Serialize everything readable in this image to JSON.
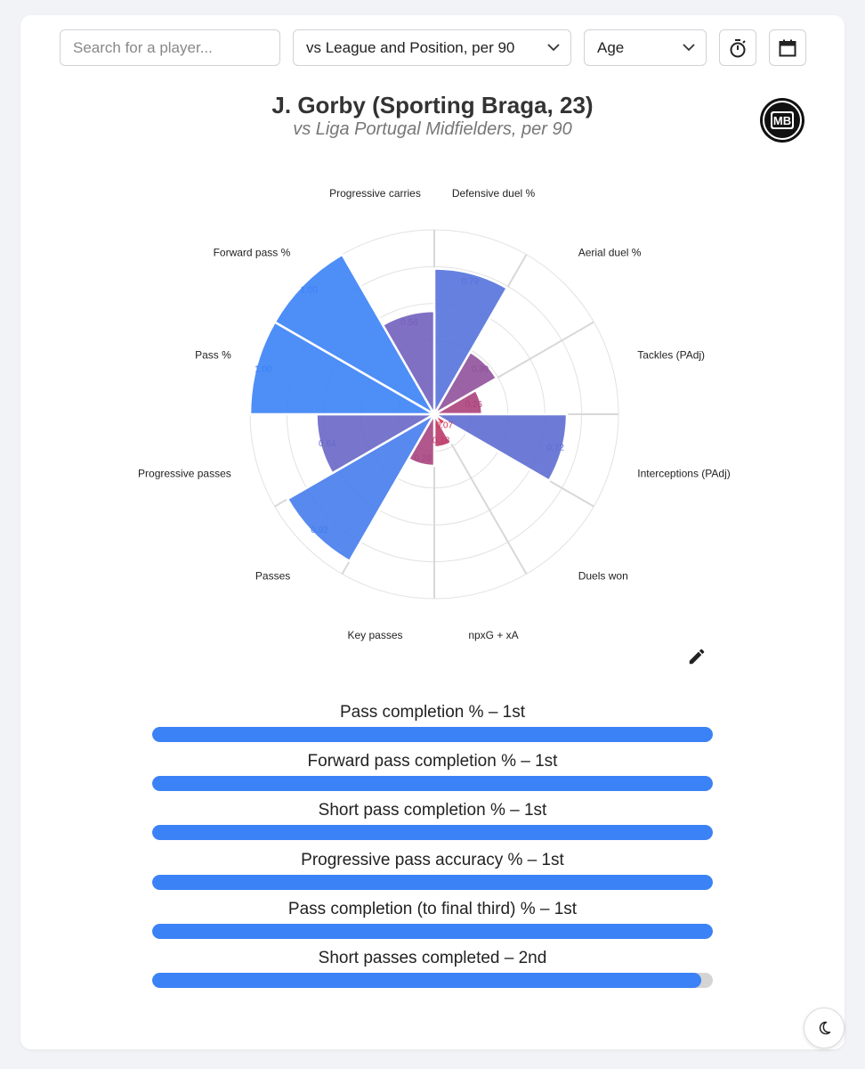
{
  "controls": {
    "search_placeholder": "Search for a player...",
    "comparison_select": "vs League and Position, per 90",
    "age_select": "Age",
    "timer_icon": "stopwatch-icon",
    "calendar_icon": "calendar-icon",
    "dropdown_icon": "chevron-down-icon"
  },
  "header": {
    "title": "J. Gorby (Sporting Braga, 23)",
    "subtitle": "vs Liga Portugal Midfielders, per 90",
    "logo_text": "MB"
  },
  "chart_data": {
    "type": "polar-bar",
    "rlim": [
      0,
      1
    ],
    "grid": true,
    "categories": [
      "Defensive duel %",
      "Aerial duel %",
      "Tackles (PAdj)",
      "Interceptions (PAdj)",
      "Duels won",
      "npxG + xA",
      "Key passes",
      "Passes",
      "Progressive passes",
      "Pass %",
      "Forward pass %",
      "Progressive carries"
    ],
    "values": [
      0.79,
      0.39,
      0.26,
      0.72,
      0.07,
      0.18,
      0.28,
      0.92,
      0.64,
      1.0,
      1.0,
      0.56
    ],
    "value_labels": [
      "0.79",
      "0.39",
      "0.26",
      "0.72",
      "0.07",
      "0.18",
      "0.28",
      "0.92",
      "0.64",
      "1.00",
      "1.00",
      "0.56"
    ],
    "colors": {
      "low": "#e0273f",
      "mid": "#7a5db5",
      "high": "#3b82f6"
    }
  },
  "toolbar": {
    "edit_icon": "pencil-icon"
  },
  "percentile_bars": [
    {
      "label": "Pass completion % – 1st",
      "percentile": 1.0
    },
    {
      "label": "Forward pass completion % – 1st",
      "percentile": 1.0
    },
    {
      "label": "Short pass completion % – 1st",
      "percentile": 1.0
    },
    {
      "label": "Progressive pass accuracy % – 1st",
      "percentile": 1.0
    },
    {
      "label": "Pass completion (to final third) % – 1st",
      "percentile": 1.0
    },
    {
      "label": "Short passes completed – 2nd",
      "percentile": 0.98
    }
  ],
  "footer": {
    "theme_icon": "moon-icon"
  }
}
